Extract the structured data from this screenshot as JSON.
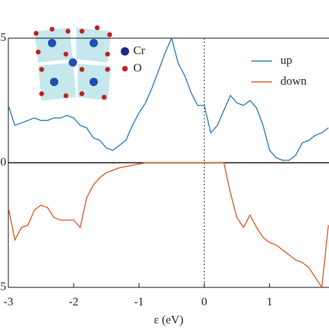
{
  "chart_data": {
    "type": "line",
    "x_label": "ε (eV)",
    "annotations": [
      "Cr",
      "O"
    ],
    "legend": "upper right",
    "x": [
      -3.0,
      -2.9,
      -2.8,
      -2.7,
      -2.6,
      -2.5,
      -2.4,
      -2.3,
      -2.2,
      -2.1,
      -2.0,
      -1.9,
      -1.8,
      -1.7,
      -1.6,
      -1.5,
      -1.4,
      -1.3,
      -1.2,
      -1.1,
      -1.0,
      -0.9,
      -0.8,
      -0.7,
      -0.6,
      -0.5,
      -0.4,
      -0.3,
      -0.2,
      -0.1,
      0.0,
      0.1,
      0.2,
      0.3,
      0.4,
      0.5,
      0.6,
      0.7,
      0.8,
      0.9,
      1.0,
      1.1,
      1.2,
      1.3,
      1.4,
      1.5,
      1.6,
      1.7,
      1.8,
      1.9
    ],
    "series": [
      {
        "name": "up",
        "color": "#1f77b4",
        "values": [
          2.3,
          1.5,
          1.6,
          1.7,
          1.8,
          1.7,
          1.7,
          1.8,
          1.8,
          1.9,
          1.8,
          1.5,
          1.4,
          1.0,
          0.9,
          0.6,
          0.5,
          0.7,
          0.9,
          1.5,
          2.0,
          2.4,
          3.0,
          3.7,
          4.4,
          5.0,
          4.0,
          3.5,
          2.8,
          2.3,
          2.3,
          1.2,
          1.5,
          2.1,
          2.7,
          2.4,
          2.3,
          2.5,
          2.2,
          1.5,
          0.5,
          0.2,
          0.1,
          0.1,
          0.3,
          0.8,
          0.9,
          1.1,
          1.2,
          1.4
        ]
      },
      {
        "name": "down",
        "color": "#d95319",
        "values": [
          -1.8,
          -3.1,
          -2.6,
          -2.5,
          -1.9,
          -1.7,
          -1.8,
          -2.2,
          -2.3,
          -2.3,
          -2.3,
          -2.6,
          -1.4,
          -0.9,
          -0.6,
          -0.4,
          -0.3,
          -0.2,
          -0.15,
          -0.1,
          -0.05,
          0,
          0,
          0,
          0,
          0,
          0,
          0,
          0,
          0,
          0,
          0,
          0,
          0,
          -1.2,
          -2.2,
          -2.6,
          -2.1,
          -2.6,
          -3.0,
          -3.2,
          -3.3,
          -3.5,
          -3.7,
          -3.9,
          -4.0,
          -4.2,
          -4.6,
          -5.0,
          -2.5
        ]
      }
    ],
    "xlim": [
      -3,
      1.91
    ],
    "xticks": [
      -3,
      -2,
      -1,
      0,
      1
    ],
    "ylim": [
      -5,
      5
    ],
    "yticks": [
      {
        "value": -5,
        "label": "5"
      },
      0,
      5
    ]
  }
}
